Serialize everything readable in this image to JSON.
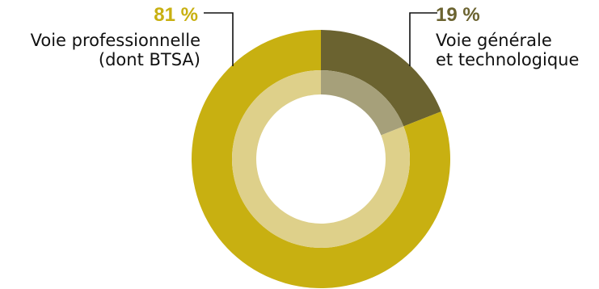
{
  "chart_data": {
    "type": "pie",
    "series": [
      {
        "value": 81,
        "value_label": "81 %",
        "label_lines": [
          "Voie professionnelle",
          "(dont BTSA)"
        ],
        "color": "#c8b011",
        "inner_color": "#ded08a",
        "label_position": "top-left"
      },
      {
        "value": 19,
        "value_label": "19 %",
        "label_lines": [
          "Voie générale",
          "et technologique"
        ],
        "color": "#6b6330",
        "inner_color": "#a6a07a",
        "label_position": "top-right"
      }
    ]
  }
}
